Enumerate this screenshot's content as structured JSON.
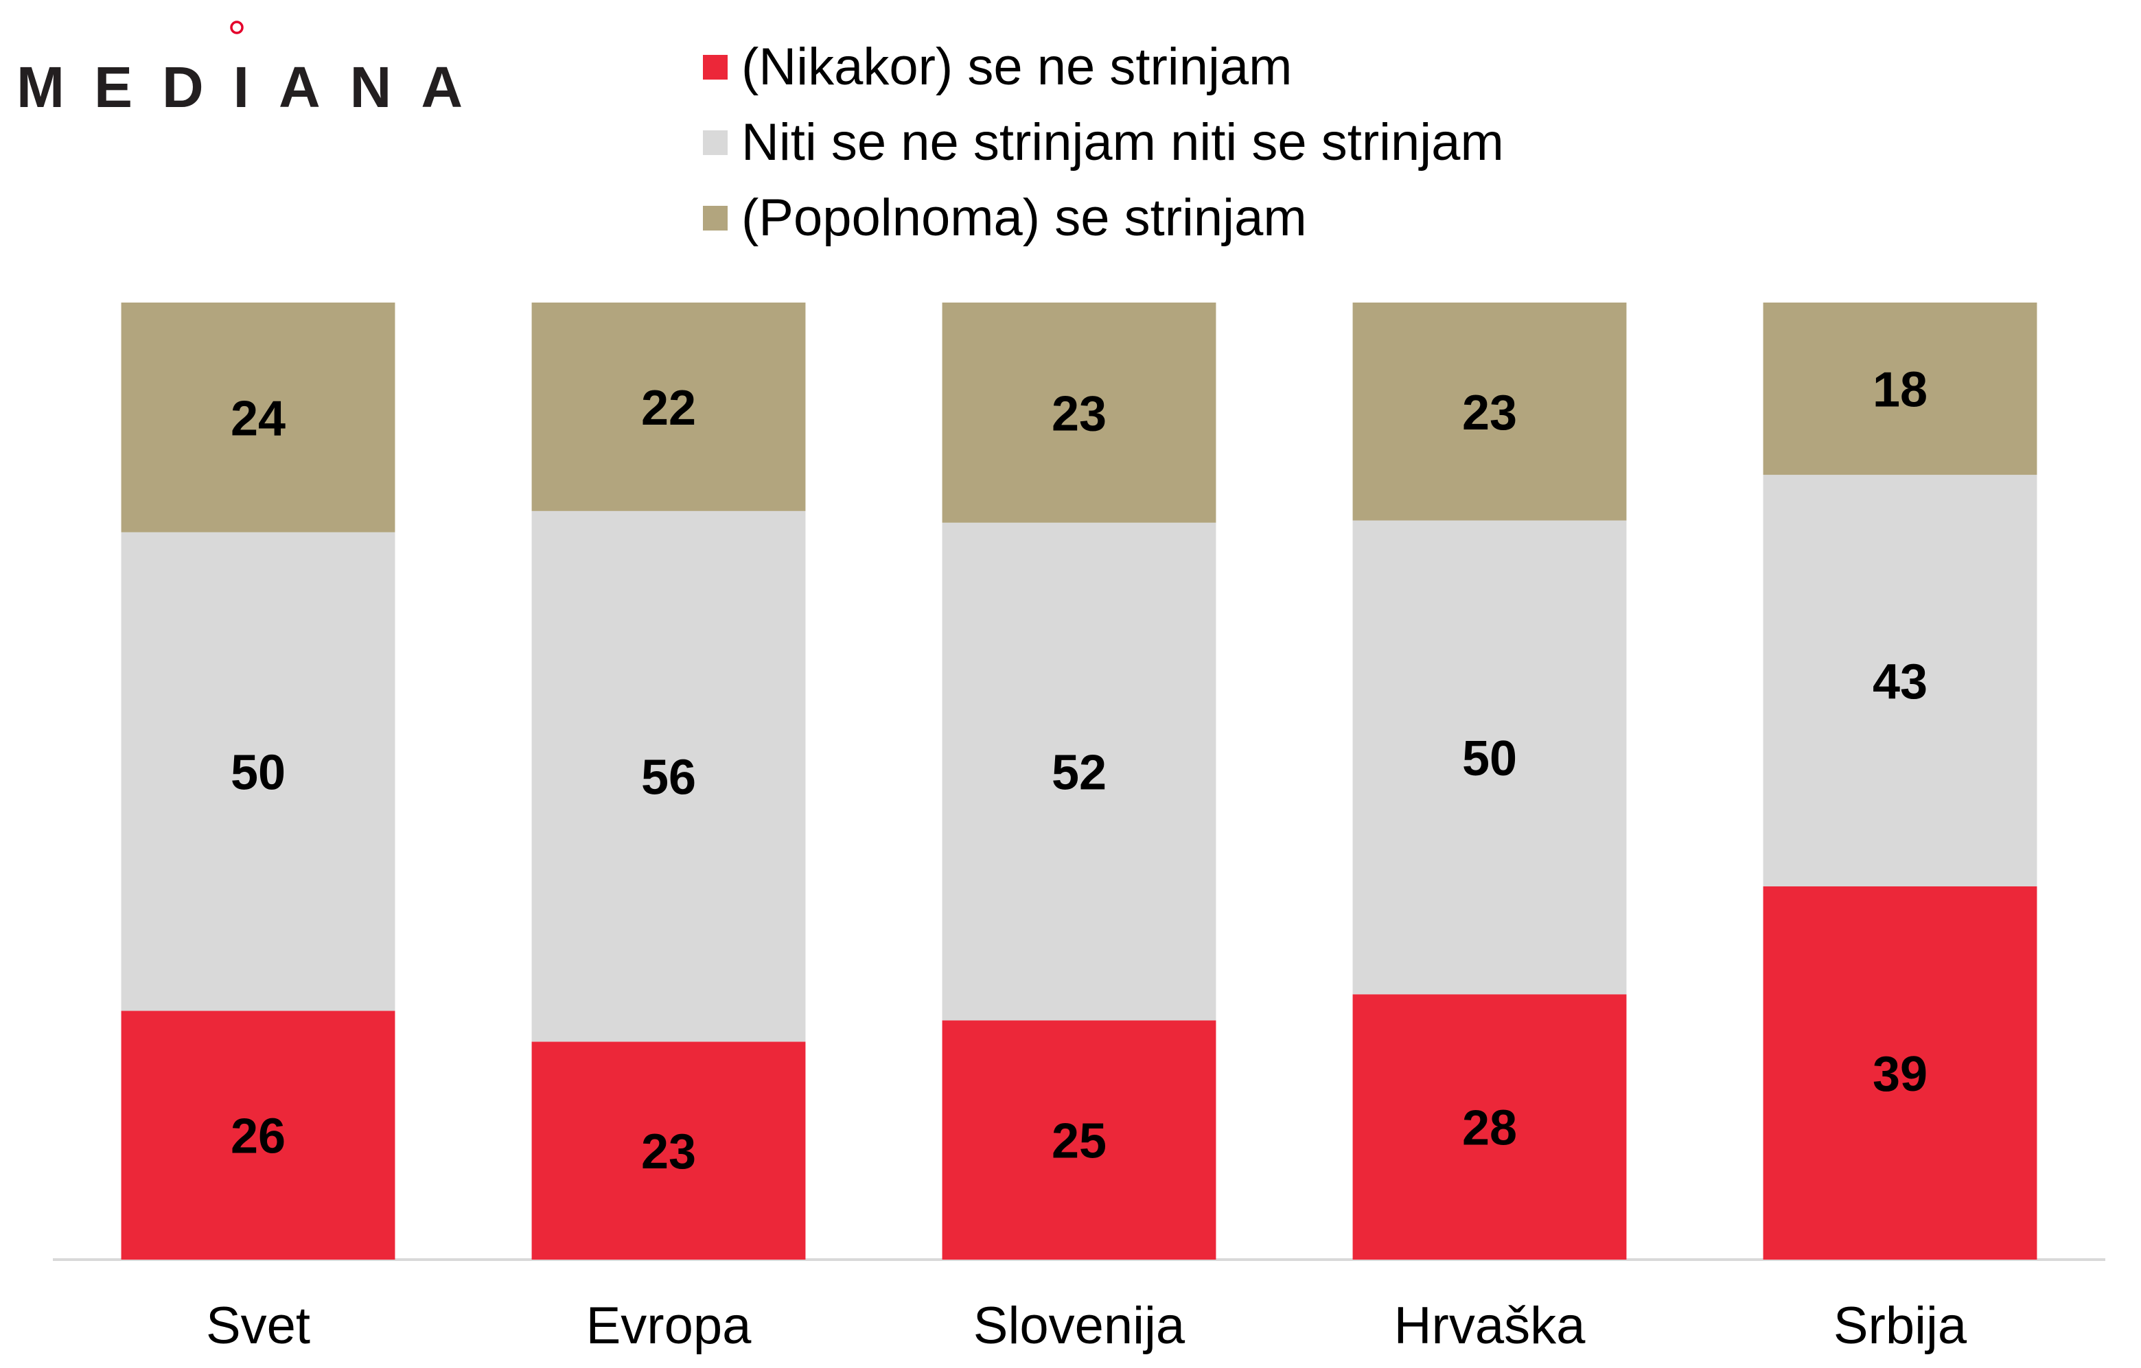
{
  "logo": {
    "text": "MEDIANA",
    "text_color": "#231F20",
    "ring_color": "#E4002B"
  },
  "chart_data": {
    "type": "bar",
    "stacked": true,
    "normalized_100": true,
    "ylim": [
      0,
      100
    ],
    "y_axis_visible": false,
    "grid": false,
    "legend_position": "top",
    "data_labels": true,
    "axis_line_color": "#D9D9D9",
    "categories": [
      "Svet",
      "Evropa",
      "Slovenija",
      "Hrvaška",
      "Srbija"
    ],
    "series": [
      {
        "name": "(Nikakor) se ne strinjam",
        "color": "#EC2739",
        "values": [
          26,
          23,
          25,
          28,
          39
        ]
      },
      {
        "name": "Niti se ne strinjam niti se strinjam",
        "color": "#D9D9D9",
        "values": [
          50,
          56,
          52,
          50,
          43
        ]
      },
      {
        "name": "(Popolnoma) se strinjam",
        "color": "#B2A57E",
        "values": [
          24,
          22,
          23,
          23,
          18
        ]
      }
    ]
  }
}
